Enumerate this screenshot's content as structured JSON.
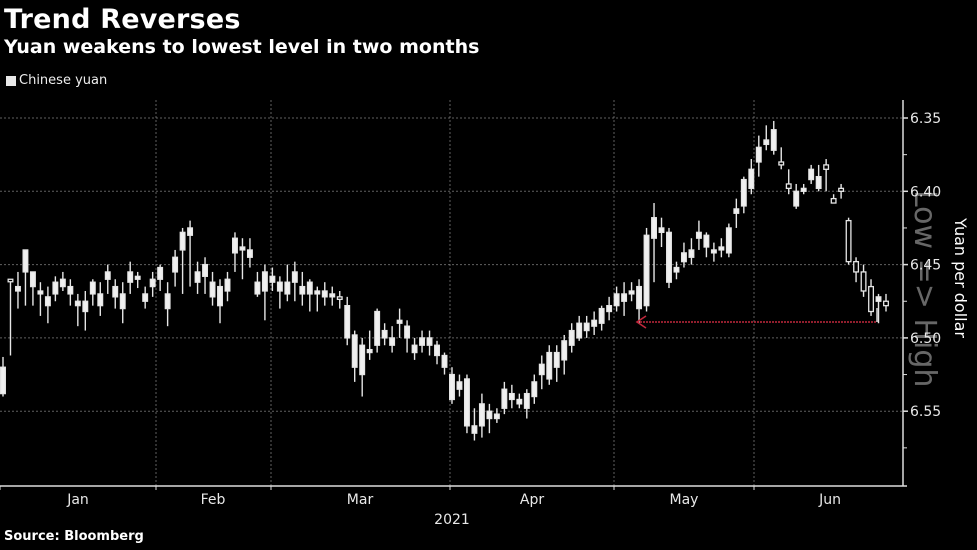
{
  "title": "Trend Reverses",
  "subtitle": "Yuan weakens to lowest level in two months",
  "legend": {
    "label": "Chinese yuan",
    "color": "#e8e8e8"
  },
  "source": "Source: Bloomberg",
  "annotation": {
    "arrow_color": "#c0283c",
    "note": "arrow points back to level of two months earlier"
  },
  "watermark": "Low => High",
  "chart_data": {
    "type": "candlestick",
    "title": "Trend Reverses",
    "subtitle": "Yuan weakens to lowest level in two months",
    "xlabel": "2021",
    "ylabel": "Yuan per dollar",
    "y_inverted": true,
    "ylim": [
      6.33,
      6.58
    ],
    "yticks": [
      6.35,
      6.4,
      6.45,
      6.5,
      6.55
    ],
    "ytick_labels": [
      "6.35",
      "6.40",
      "6.45",
      "6.50",
      "6.55"
    ],
    "xtick_labels": [
      "Jan",
      "Feb",
      "Mar",
      "Apr",
      "May",
      "Jun"
    ],
    "year_label": "2021",
    "grid": true,
    "legend": [
      "Chinese yuan"
    ],
    "legend_position": "top-left",
    "series": [
      {
        "name": "Chinese yuan",
        "ohlc": [
          [
            6.538,
            6.52,
            6.54,
            6.513
          ],
          [
            6.46,
            6.46,
            6.465,
            6.512
          ],
          [
            6.468,
            6.465,
            6.455,
            6.48
          ],
          [
            6.455,
            6.44,
            6.478,
            6.475
          ],
          [
            6.465,
            6.455,
            6.468,
            6.478
          ],
          [
            6.47,
            6.468,
            6.462,
            6.485
          ],
          [
            6.478,
            6.472,
            6.465,
            6.49
          ],
          [
            6.47,
            6.462,
            6.458,
            6.475
          ],
          [
            6.465,
            6.46,
            6.455,
            6.468
          ],
          [
            6.47,
            6.465,
            6.46,
            6.478
          ],
          [
            6.478,
            6.475,
            6.47,
            6.492
          ],
          [
            6.482,
            6.475,
            6.468,
            6.495
          ],
          [
            6.47,
            6.462,
            6.46,
            6.478
          ],
          [
            6.478,
            6.47,
            6.462,
            6.485
          ],
          [
            6.46,
            6.455,
            6.45,
            6.47
          ],
          [
            6.472,
            6.465,
            6.46,
            6.48
          ],
          [
            6.48,
            6.47,
            6.462,
            6.49
          ],
          [
            6.462,
            6.455,
            6.448,
            6.47
          ],
          [
            6.46,
            6.458,
            6.455,
            6.466
          ],
          [
            6.475,
            6.47,
            6.465,
            6.48
          ],
          [
            6.465,
            6.46,
            6.455,
            6.472
          ],
          [
            6.46,
            6.452,
            6.45,
            6.468
          ],
          [
            6.48,
            6.47,
            6.462,
            6.492
          ],
          [
            6.455,
            6.445,
            6.44,
            6.465
          ],
          [
            6.44,
            6.428,
            6.425,
            6.47
          ],
          [
            6.43,
            6.425,
            6.42,
            6.465
          ],
          [
            6.462,
            6.455,
            6.448,
            6.47
          ],
          [
            6.458,
            6.45,
            6.445,
            6.47
          ],
          [
            6.472,
            6.462,
            6.455,
            6.478
          ],
          [
            6.478,
            6.465,
            6.46,
            6.49
          ],
          [
            6.468,
            6.46,
            6.455,
            6.475
          ],
          [
            6.442,
            6.432,
            6.428,
            6.455
          ],
          [
            6.44,
            6.438,
            6.432,
            6.46
          ],
          [
            6.445,
            6.44,
            6.432,
            6.452
          ],
          [
            6.47,
            6.462,
            6.455,
            6.472
          ],
          [
            6.468,
            6.455,
            6.45,
            6.488
          ],
          [
            6.462,
            6.458,
            6.452,
            6.468
          ],
          [
            6.468,
            6.462,
            6.458,
            6.48
          ],
          [
            6.47,
            6.462,
            6.45,
            6.475
          ],
          [
            6.462,
            6.455,
            6.448,
            6.475
          ],
          [
            6.47,
            6.465,
            6.455,
            6.478
          ],
          [
            6.47,
            6.462,
            6.46,
            6.482
          ],
          [
            6.47,
            6.468,
            6.465,
            6.482
          ],
          [
            6.472,
            6.468,
            6.462,
            6.478
          ],
          [
            6.472,
            6.47,
            6.465,
            6.478
          ],
          [
            6.472,
            6.472,
            6.468,
            6.48
          ],
          [
            6.5,
            6.478,
            6.472,
            6.505
          ],
          [
            6.52,
            6.498,
            6.495,
            6.53
          ],
          [
            6.525,
            6.505,
            6.5,
            6.54
          ],
          [
            6.51,
            6.508,
            6.495,
            6.515
          ],
          [
            6.505,
            6.482,
            6.48,
            6.51
          ],
          [
            6.5,
            6.495,
            6.49,
            6.505
          ],
          [
            6.505,
            6.5,
            6.492,
            6.51
          ],
          [
            6.49,
            6.488,
            6.48,
            6.5
          ],
          [
            6.5,
            6.492,
            6.488,
            6.51
          ],
          [
            6.51,
            6.505,
            6.5,
            6.515
          ],
          [
            6.505,
            6.5,
            6.495,
            6.51
          ],
          [
            6.505,
            6.5,
            6.495,
            6.512
          ],
          [
            6.512,
            6.505,
            6.502,
            6.518
          ],
          [
            6.52,
            6.512,
            6.51,
            6.525
          ],
          [
            6.542,
            6.525,
            6.52,
            6.545
          ],
          [
            6.535,
            6.53,
            6.525,
            6.54
          ],
          [
            6.56,
            6.528,
            6.525,
            6.565
          ],
          [
            6.565,
            6.56,
            6.548,
            6.57
          ],
          [
            6.56,
            6.545,
            6.538,
            6.568
          ],
          [
            6.555,
            6.55,
            6.545,
            6.565
          ],
          [
            6.555,
            6.552,
            6.548,
            6.558
          ],
          [
            6.548,
            6.535,
            6.53,
            6.552
          ],
          [
            6.542,
            6.538,
            6.532,
            6.548
          ],
          [
            6.545,
            6.542,
            6.538,
            6.548
          ],
          [
            6.548,
            6.538,
            6.535,
            6.555
          ],
          [
            6.54,
            6.53,
            6.525,
            6.545
          ],
          [
            6.525,
            6.518,
            6.512,
            6.535
          ],
          [
            6.528,
            6.51,
            6.505,
            6.532
          ],
          [
            6.52,
            6.51,
            6.505,
            6.53
          ],
          [
            6.515,
            6.502,
            6.498,
            6.525
          ],
          [
            6.505,
            6.495,
            6.49,
            6.51
          ],
          [
            6.5,
            6.49,
            6.485,
            6.502
          ],
          [
            6.495,
            6.49,
            6.485,
            6.5
          ],
          [
            6.492,
            6.488,
            6.482,
            6.498
          ],
          [
            6.49,
            6.48,
            6.478,
            6.495
          ],
          [
            6.482,
            6.478,
            6.472,
            6.488
          ],
          [
            6.478,
            6.47,
            6.465,
            6.482
          ],
          [
            6.475,
            6.47,
            6.462,
            6.485
          ],
          [
            6.47,
            6.468,
            6.462,
            6.475
          ],
          [
            6.48,
            6.465,
            6.46,
            6.49
          ],
          [
            6.478,
            6.43,
            6.425,
            6.482
          ],
          [
            6.432,
            6.418,
            6.408,
            6.462
          ],
          [
            6.428,
            6.425,
            6.418,
            6.438
          ],
          [
            6.462,
            6.428,
            6.425,
            6.466
          ],
          [
            6.455,
            6.452,
            6.448,
            6.46
          ],
          [
            6.448,
            6.442,
            6.435,
            6.452
          ],
          [
            6.445,
            6.44,
            6.432,
            6.45
          ],
          [
            6.432,
            6.428,
            6.42,
            6.44
          ],
          [
            6.438,
            6.43,
            6.428,
            6.445
          ],
          [
            6.442,
            6.44,
            6.435,
            6.448
          ],
          [
            6.44,
            6.438,
            6.432,
            6.445
          ],
          [
            6.442,
            6.425,
            6.422,
            6.445
          ],
          [
            6.415,
            6.412,
            6.405,
            6.425
          ],
          [
            6.41,
            6.392,
            6.39,
            6.415
          ],
          [
            6.398,
            6.385,
            6.378,
            6.402
          ],
          [
            6.38,
            6.37,
            6.362,
            6.39
          ],
          [
            6.368,
            6.365,
            6.355,
            6.372
          ],
          [
            6.372,
            6.358,
            6.352,
            6.375
          ],
          [
            6.38,
            6.382,
            6.37,
            6.385
          ],
          [
            6.395,
            6.398,
            6.385,
            6.402
          ],
          [
            6.41,
            6.4,
            6.395,
            6.412
          ],
          [
            6.4,
            6.398,
            6.395,
            6.402
          ],
          [
            6.392,
            6.385,
            6.382,
            6.395
          ],
          [
            6.398,
            6.39,
            6.382,
            6.4
          ],
          [
            6.382,
            6.385,
            6.378,
            6.4
          ],
          [
            6.405,
            6.408,
            6.402,
            6.408
          ],
          [
            6.398,
            6.4,
            6.395,
            6.405
          ],
          [
            6.42,
            6.448,
            6.418,
            6.45
          ],
          [
            6.448,
            6.455,
            6.445,
            6.462
          ],
          [
            6.455,
            6.468,
            6.45,
            6.472
          ],
          [
            6.465,
            6.482,
            6.46,
            6.485
          ],
          [
            6.475,
            6.472,
            6.47,
            6.49
          ],
          [
            6.475,
            6.478,
            6.47,
            6.482
          ]
        ]
      }
    ],
    "annotations": [
      {
        "type": "arrow",
        "direction": "left",
        "y": 6.487,
        "from_month": "Jun",
        "to_month": "Apr",
        "color": "#c0283c"
      },
      {
        "type": "watermark_text",
        "text": "Low => High",
        "orientation": "vertical"
      }
    ]
  }
}
